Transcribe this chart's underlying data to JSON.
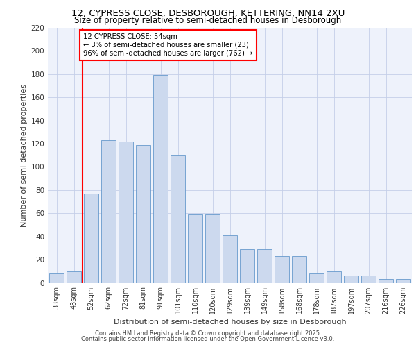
{
  "title_line1": "12, CYPRESS CLOSE, DESBOROUGH, KETTERING, NN14 2XU",
  "title_line2": "Size of property relative to semi-detached houses in Desborough",
  "xlabel": "Distribution of semi-detached houses by size in Desborough",
  "ylabel": "Number of semi-detached properties",
  "categories": [
    "33sqm",
    "43sqm",
    "52sqm",
    "62sqm",
    "72sqm",
    "81sqm",
    "91sqm",
    "101sqm",
    "110sqm",
    "120sqm",
    "129sqm",
    "139sqm",
    "149sqm",
    "158sqm",
    "168sqm",
    "178sqm",
    "187sqm",
    "197sqm",
    "207sqm",
    "216sqm",
    "226sqm"
  ],
  "bar_values": [
    8,
    10,
    77,
    123,
    122,
    119,
    179,
    110,
    59,
    59,
    41,
    29,
    29,
    23,
    23,
    8,
    10,
    6,
    6,
    3,
    3
  ],
  "annotation_title": "12 CYPRESS CLOSE: 54sqm",
  "annotation_line1": "← 3% of semi-detached houses are smaller (23)",
  "annotation_line2": "96% of semi-detached houses are larger (762) →",
  "vline_color": "red",
  "bar_color": "#ccd9ee",
  "bar_edgecolor": "#6699cc",
  "background_color": "#eef2fb",
  "grid_color": "#c5cfe8",
  "ylim": [
    0,
    220
  ],
  "yticks": [
    0,
    20,
    40,
    60,
    80,
    100,
    120,
    140,
    160,
    180,
    200,
    220
  ],
  "footer_line1": "Contains HM Land Registry data © Crown copyright and database right 2025.",
  "footer_line2": "Contains public sector information licensed under the Open Government Licence v3.0."
}
